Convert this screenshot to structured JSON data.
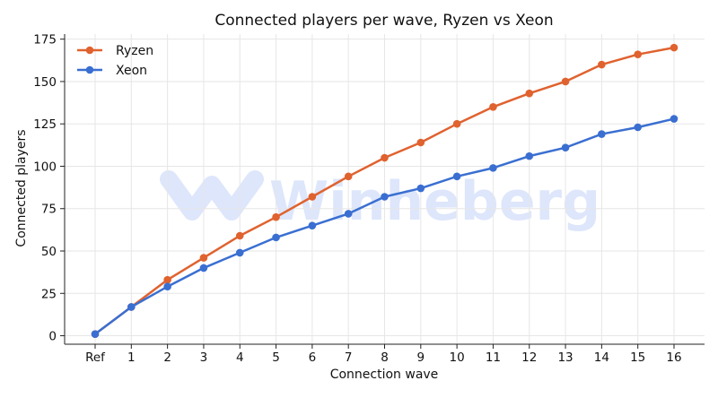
{
  "chart_data": {
    "type": "line",
    "title": "Connected players per wave, Ryzen vs Xeon",
    "xlabel": "Connection wave",
    "ylabel": "Connected players",
    "categories": [
      "Ref",
      "1",
      "2",
      "3",
      "4",
      "5",
      "6",
      "7",
      "8",
      "9",
      "10",
      "11",
      "12",
      "13",
      "14",
      "15",
      "16"
    ],
    "ylim": [
      -5,
      178
    ],
    "yticks": [
      0,
      25,
      50,
      75,
      100,
      125,
      150,
      175
    ],
    "grid": true,
    "legend_position": "top-left",
    "series": [
      {
        "name": "Ryzen",
        "color": "#e0622f",
        "values": [
          1,
          17,
          33,
          46,
          59,
          70,
          82,
          94,
          105,
          114,
          125,
          135,
          143,
          150,
          160,
          166,
          170
        ]
      },
      {
        "name": "Xeon",
        "color": "#3a6fd1",
        "values": [
          1,
          17,
          29,
          40,
          49,
          58,
          65,
          72,
          82,
          87,
          94,
          99,
          106,
          111,
          119,
          123,
          128
        ]
      }
    ]
  },
  "watermark": {
    "text": "Winheberg",
    "color": "#dde6fb"
  }
}
